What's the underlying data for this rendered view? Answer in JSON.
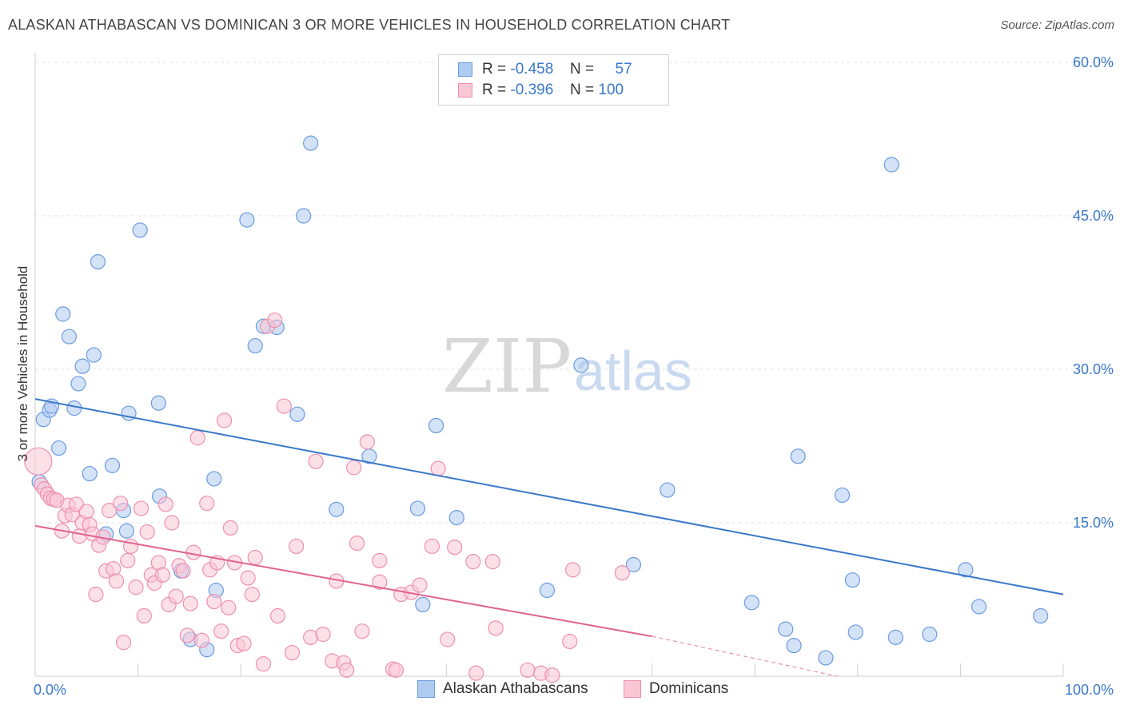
{
  "title": "ALASKAN ATHABASCAN VS DOMINICAN 3 OR MORE VEHICLES IN HOUSEHOLD CORRELATION CHART",
  "source": "Source: ZipAtlas.com",
  "watermark": {
    "zip": "ZIP",
    "atlas": "atlas"
  },
  "legend": {
    "rows": [
      {
        "r_label": "R =",
        "r_value": "-0.458",
        "n_label": "N =",
        "n_value": "57",
        "color": "#aecbf0",
        "border": "#6a9be0"
      },
      {
        "r_label": "R =",
        "r_value": "-0.396",
        "n_label": "N =",
        "n_value": "100",
        "color": "#f9c6d6",
        "border": "#ee8fb0"
      }
    ]
  },
  "bottom_legend": [
    {
      "label": "Alaskan Athabascans",
      "color": "#aecbf0",
      "border": "#6a9be0"
    },
    {
      "label": "Dominicans",
      "color": "#f9c6d6",
      "border": "#ee8fb0"
    }
  ],
  "chart_data": {
    "type": "scatter",
    "title": "ALASKAN ATHABASCAN VS DOMINICAN 3 OR MORE VEHICLES IN HOUSEHOLD CORRELATION CHART",
    "xlabel": "",
    "ylabel": "3 or more Vehicles in Household",
    "xlim": [
      0,
      100
    ],
    "ylim": [
      0,
      60
    ],
    "x_tick_labels": [
      "0.0%",
      "100.0%"
    ],
    "y_ticks": [
      15,
      30,
      45,
      60
    ],
    "y_tick_labels": [
      "15.0%",
      "30.0%",
      "45.0%",
      "60.0%"
    ],
    "grid": true,
    "series": [
      {
        "name": "Alaskan Athabascans",
        "color": "#6a9be0",
        "fill": "#aecbf0",
        "trend": {
          "x": [
            0,
            100
          ],
          "y": [
            27.1,
            8.0
          ]
        },
        "points": [
          [
            0.8,
            25.1
          ],
          [
            1.4,
            26.0
          ],
          [
            1.6,
            26.4
          ],
          [
            2.3,
            22.3
          ],
          [
            2.7,
            35.4
          ],
          [
            3.3,
            33.2
          ],
          [
            3.8,
            26.2
          ],
          [
            4.2,
            28.6
          ],
          [
            4.6,
            30.3
          ],
          [
            5.3,
            19.8
          ],
          [
            5.7,
            31.4
          ],
          [
            6.1,
            40.5
          ],
          [
            6.9,
            13.9
          ],
          [
            7.5,
            20.6
          ],
          [
            8.6,
            16.2
          ],
          [
            8.9,
            14.2
          ],
          [
            9.1,
            25.7
          ],
          [
            10.2,
            43.6
          ],
          [
            12.0,
            26.7
          ],
          [
            12.1,
            17.6
          ],
          [
            14.2,
            10.3
          ],
          [
            15.1,
            3.6
          ],
          [
            16.7,
            2.6
          ],
          [
            17.4,
            19.3
          ],
          [
            17.6,
            8.4
          ],
          [
            20.6,
            44.6
          ],
          [
            21.4,
            32.3
          ],
          [
            22.2,
            34.2
          ],
          [
            23.5,
            34.1
          ],
          [
            25.5,
            25.6
          ],
          [
            26.1,
            45.0
          ],
          [
            26.8,
            52.1
          ],
          [
            29.3,
            16.3
          ],
          [
            32.5,
            21.5
          ],
          [
            37.2,
            16.4
          ],
          [
            37.7,
            7.0
          ],
          [
            39.0,
            24.5
          ],
          [
            41.0,
            15.5
          ],
          [
            49.8,
            8.4
          ],
          [
            53.1,
            30.4
          ],
          [
            58.2,
            10.9
          ],
          [
            61.5,
            18.2
          ],
          [
            69.7,
            7.2
          ],
          [
            73.0,
            4.6
          ],
          [
            73.8,
            3.0
          ],
          [
            74.2,
            21.5
          ],
          [
            76.9,
            1.8
          ],
          [
            78.5,
            17.7
          ],
          [
            79.5,
            9.4
          ],
          [
            79.8,
            4.3
          ],
          [
            83.3,
            50.0
          ],
          [
            83.7,
            3.8
          ],
          [
            87.0,
            4.1
          ],
          [
            90.5,
            10.4
          ],
          [
            91.8,
            6.8
          ],
          [
            97.8,
            5.9
          ],
          [
            0.4,
            19.0
          ]
        ]
      },
      {
        "name": "Dominicans",
        "color": "#ee8fb0",
        "fill": "#f9c6d6",
        "trend": {
          "x": [
            0,
            60
          ],
          "y": [
            14.7,
            3.9
          ]
        },
        "trend_dashed": {
          "x": [
            60,
            78
          ],
          "y": [
            3.9,
            0.0
          ]
        },
        "points": [
          [
            0.3,
            21.0
          ],
          [
            0.6,
            18.7
          ],
          [
            0.9,
            18.3
          ],
          [
            1.2,
            17.8
          ],
          [
            1.5,
            17.4
          ],
          [
            1.8,
            17.3
          ],
          [
            2.1,
            17.2
          ],
          [
            2.6,
            14.2
          ],
          [
            2.9,
            15.7
          ],
          [
            3.2,
            16.7
          ],
          [
            3.6,
            15.8
          ],
          [
            4.0,
            16.8
          ],
          [
            4.3,
            13.7
          ],
          [
            4.6,
            15.0
          ],
          [
            5.0,
            16.1
          ],
          [
            5.3,
            14.8
          ],
          [
            5.6,
            13.9
          ],
          [
            5.9,
            8.0
          ],
          [
            6.2,
            12.8
          ],
          [
            6.6,
            13.6
          ],
          [
            6.9,
            10.3
          ],
          [
            7.2,
            16.2
          ],
          [
            7.6,
            10.5
          ],
          [
            7.9,
            9.3
          ],
          [
            8.3,
            16.9
          ],
          [
            8.6,
            3.3
          ],
          [
            9.0,
            11.3
          ],
          [
            9.3,
            12.7
          ],
          [
            9.8,
            8.7
          ],
          [
            10.3,
            16.4
          ],
          [
            10.6,
            5.9
          ],
          [
            10.9,
            14.1
          ],
          [
            11.3,
            9.9
          ],
          [
            11.6,
            9.1
          ],
          [
            12.0,
            11.1
          ],
          [
            12.4,
            9.9
          ],
          [
            12.7,
            16.8
          ],
          [
            13.0,
            7.0
          ],
          [
            13.3,
            15.0
          ],
          [
            13.7,
            7.8
          ],
          [
            14.0,
            10.8
          ],
          [
            14.4,
            10.3
          ],
          [
            14.8,
            4.0
          ],
          [
            15.1,
            7.1
          ],
          [
            15.4,
            12.1
          ],
          [
            15.8,
            23.3
          ],
          [
            16.2,
            3.5
          ],
          [
            16.7,
            16.9
          ],
          [
            17.0,
            10.4
          ],
          [
            17.4,
            7.3
          ],
          [
            17.7,
            11.1
          ],
          [
            18.1,
            4.4
          ],
          [
            18.4,
            25.0
          ],
          [
            18.8,
            6.7
          ],
          [
            19.0,
            14.5
          ],
          [
            19.4,
            11.1
          ],
          [
            19.7,
            3.0
          ],
          [
            20.3,
            3.2
          ],
          [
            20.7,
            9.6
          ],
          [
            21.1,
            8.0
          ],
          [
            21.4,
            11.6
          ],
          [
            22.2,
            1.2
          ],
          [
            22.6,
            34.2
          ],
          [
            23.3,
            34.8
          ],
          [
            23.6,
            5.9
          ],
          [
            24.2,
            26.4
          ],
          [
            25.0,
            2.3
          ],
          [
            25.4,
            12.7
          ],
          [
            26.8,
            3.8
          ],
          [
            27.3,
            21.0
          ],
          [
            28.0,
            4.1
          ],
          [
            28.9,
            1.5
          ],
          [
            29.3,
            9.3
          ],
          [
            30.0,
            1.3
          ],
          [
            30.3,
            0.6
          ],
          [
            31.0,
            20.4
          ],
          [
            31.3,
            13.0
          ],
          [
            31.8,
            4.4
          ],
          [
            32.3,
            22.9
          ],
          [
            33.5,
            11.3
          ],
          [
            33.5,
            9.2
          ],
          [
            34.8,
            0.7
          ],
          [
            35.1,
            0.6
          ],
          [
            35.6,
            8.0
          ],
          [
            36.6,
            8.2
          ],
          [
            37.4,
            8.9
          ],
          [
            38.6,
            12.7
          ],
          [
            39.2,
            20.3
          ],
          [
            40.1,
            3.6
          ],
          [
            40.8,
            12.6
          ],
          [
            42.6,
            11.2
          ],
          [
            42.9,
            0.3
          ],
          [
            44.5,
            11.2
          ],
          [
            44.8,
            4.7
          ],
          [
            47.9,
            0.6
          ],
          [
            49.2,
            0.3
          ],
          [
            50.3,
            0.1
          ],
          [
            52.0,
            3.4
          ],
          [
            52.3,
            10.4
          ],
          [
            57.1,
            10.1
          ]
        ]
      }
    ]
  }
}
